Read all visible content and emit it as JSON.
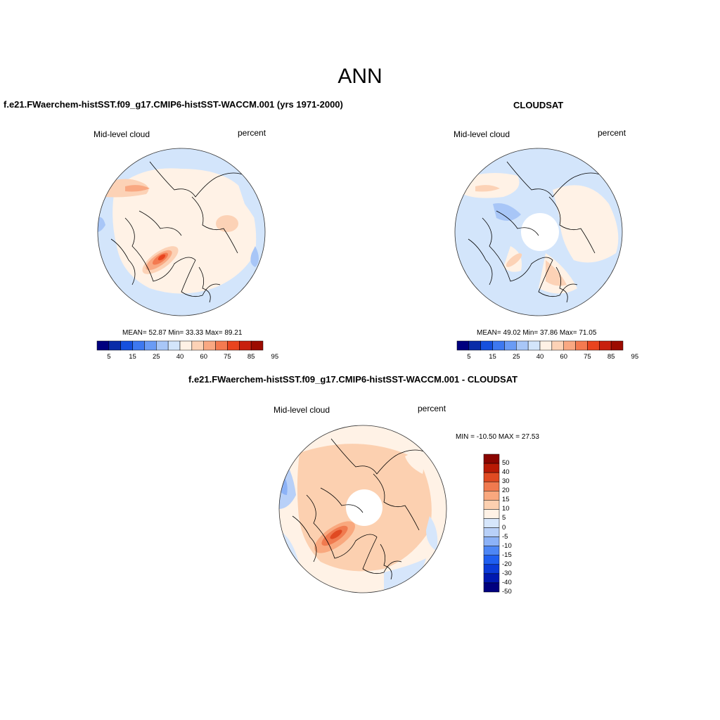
{
  "title": "ANN",
  "colors": {
    "seq": [
      "#00007f",
      "#0a2ca8",
      "#1550de",
      "#3d78f0",
      "#6a9bf5",
      "#a8c6f7",
      "#d3e5fb",
      "#fff2e6",
      "#fcd2b6",
      "#f9a882",
      "#f47a50",
      "#e9441f",
      "#c8200e",
      "#9c0b00"
    ],
    "diff": [
      "#00007f",
      "#0018b0",
      "#0b3ad8",
      "#1f5ef0",
      "#4d86f5",
      "#8cb2f7",
      "#b8d0f8",
      "#d6e6fb",
      "#fff2e6",
      "#fcd0b0",
      "#f9a87e",
      "#f07a4f",
      "#e04a22",
      "#b81a05",
      "#8a0500"
    ]
  },
  "panels": [
    {
      "id": "model",
      "title": "f.e21.FWaerchem-histSST.f09_g17.CMIP6-histSST-WACCM.001 (yrs 1971-2000)",
      "left_label": "Mid-level cloud",
      "right_label": "percent",
      "stats": "MEAN=  52.87  Min=  33.33  Max=  89.21",
      "colorbar_ticks": [
        "5",
        "15",
        "25",
        "40",
        "60",
        "75",
        "85",
        "95"
      ]
    },
    {
      "id": "obs",
      "title": "CLOUDSAT",
      "left_label": "Mid-level cloud",
      "right_label": "percent",
      "stats": "MEAN=  49.02  Min=  37.86  Max=  71.05",
      "colorbar_ticks": [
        "5",
        "15",
        "25",
        "40",
        "60",
        "75",
        "85",
        "95"
      ]
    },
    {
      "id": "diff",
      "title": "f.e21.FWaerchem-histSST.f09_g17.CMIP6-histSST-WACCM.001 - CLOUDSAT",
      "left_label": "Mid-level cloud",
      "right_label": "percent",
      "stats": "MIN = -10.50 MAX =  27.53",
      "colorbar_ticks": [
        "50",
        "40",
        "30",
        "20",
        "15",
        "10",
        "5",
        "0",
        "-5",
        "-10",
        "-15",
        "-20",
        "-30",
        "-40",
        "-50"
      ]
    }
  ]
}
